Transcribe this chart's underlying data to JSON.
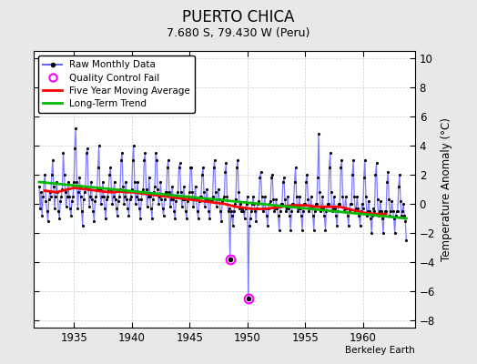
{
  "title": "PUERTO CHICA",
  "subtitle": "7.680 S, 79.430 W (Peru)",
  "ylabel": "Temperature Anomaly (°C)",
  "xlabel_note": "Berkeley Earth",
  "xlim": [
    1931.5,
    1964.5
  ],
  "ylim": [
    -8.5,
    10.5
  ],
  "yticks": [
    -8,
    -6,
    -4,
    -2,
    0,
    2,
    4,
    6,
    8,
    10
  ],
  "xticks": [
    1935,
    1940,
    1945,
    1950,
    1955,
    1960
  ],
  "background_color": "#e8e8e8",
  "plot_bg": "#ffffff",
  "raw_color": "#6666ff",
  "dot_color": "#000000",
  "ma_color": "#ff0000",
  "trend_color": "#00bb00",
  "qc_fail_color": "#ff00ff",
  "raw_data": [
    [
      1932.0,
      1.2
    ],
    [
      1932.083,
      -0.3
    ],
    [
      1932.167,
      0.8
    ],
    [
      1932.25,
      -0.8
    ],
    [
      1932.333,
      0.5
    ],
    [
      1932.417,
      1.5
    ],
    [
      1932.5,
      2.0
    ],
    [
      1932.583,
      0.2
    ],
    [
      1932.667,
      -0.5
    ],
    [
      1932.75,
      -1.2
    ],
    [
      1932.833,
      0.3
    ],
    [
      1932.917,
      0.8
    ],
    [
      1933.0,
      0.5
    ],
    [
      1933.083,
      2.0
    ],
    [
      1933.167,
      3.0
    ],
    [
      1933.25,
      1.2
    ],
    [
      1933.333,
      -0.3
    ],
    [
      1933.417,
      0.5
    ],
    [
      1933.5,
      1.5
    ],
    [
      1933.583,
      0.8
    ],
    [
      1933.667,
      -0.5
    ],
    [
      1933.75,
      -1.0
    ],
    [
      1933.833,
      0.2
    ],
    [
      1933.917,
      0.5
    ],
    [
      1934.0,
      1.0
    ],
    [
      1934.083,
      3.5
    ],
    [
      1934.167,
      2.0
    ],
    [
      1934.25,
      0.8
    ],
    [
      1934.333,
      -0.2
    ],
    [
      1934.417,
      0.5
    ],
    [
      1934.5,
      1.5
    ],
    [
      1934.583,
      0.5
    ],
    [
      1934.667,
      -0.3
    ],
    [
      1934.75,
      -0.8
    ],
    [
      1934.833,
      0.2
    ],
    [
      1934.917,
      0.5
    ],
    [
      1935.0,
      1.5
    ],
    [
      1935.083,
      3.8
    ],
    [
      1935.167,
      5.2
    ],
    [
      1935.25,
      1.5
    ],
    [
      1935.333,
      -0.3
    ],
    [
      1935.417,
      0.8
    ],
    [
      1935.5,
      1.8
    ],
    [
      1935.583,
      0.5
    ],
    [
      1935.667,
      -0.5
    ],
    [
      1935.75,
      -1.5
    ],
    [
      1935.833,
      0.3
    ],
    [
      1935.917,
      0.8
    ],
    [
      1936.0,
      1.2
    ],
    [
      1936.083,
      3.5
    ],
    [
      1936.167,
      3.8
    ],
    [
      1936.25,
      1.0
    ],
    [
      1936.333,
      -0.2
    ],
    [
      1936.417,
      0.5
    ],
    [
      1936.5,
      1.5
    ],
    [
      1936.583,
      0.3
    ],
    [
      1936.667,
      -0.5
    ],
    [
      1936.75,
      -1.2
    ],
    [
      1936.833,
      0.2
    ],
    [
      1936.917,
      0.5
    ],
    [
      1937.0,
      1.0
    ],
    [
      1937.083,
      2.5
    ],
    [
      1937.167,
      4.0
    ],
    [
      1937.25,
      1.0
    ],
    [
      1937.333,
      0.0
    ],
    [
      1937.417,
      0.5
    ],
    [
      1937.5,
      1.5
    ],
    [
      1937.583,
      0.5
    ],
    [
      1937.667,
      -0.3
    ],
    [
      1937.75,
      -1.0
    ],
    [
      1937.833,
      0.3
    ],
    [
      1937.917,
      0.5
    ],
    [
      1938.0,
      1.0
    ],
    [
      1938.083,
      2.0
    ],
    [
      1938.167,
      2.5
    ],
    [
      1938.25,
      1.0
    ],
    [
      1938.333,
      0.0
    ],
    [
      1938.417,
      0.5
    ],
    [
      1938.5,
      1.5
    ],
    [
      1938.583,
      0.3
    ],
    [
      1938.667,
      -0.3
    ],
    [
      1938.75,
      -0.8
    ],
    [
      1938.833,
      0.2
    ],
    [
      1938.917,
      0.5
    ],
    [
      1939.0,
      1.0
    ],
    [
      1939.083,
      3.0
    ],
    [
      1939.167,
      3.5
    ],
    [
      1939.25,
      1.2
    ],
    [
      1939.333,
      0.0
    ],
    [
      1939.417,
      0.5
    ],
    [
      1939.5,
      1.5
    ],
    [
      1939.583,
      0.3
    ],
    [
      1939.667,
      -0.3
    ],
    [
      1939.75,
      -0.8
    ],
    [
      1939.833,
      0.3
    ],
    [
      1939.917,
      0.5
    ],
    [
      1940.0,
      1.0
    ],
    [
      1940.083,
      3.0
    ],
    [
      1940.167,
      4.0
    ],
    [
      1940.25,
      1.5
    ],
    [
      1940.333,
      0.0
    ],
    [
      1940.417,
      0.5
    ],
    [
      1940.5,
      1.5
    ],
    [
      1940.583,
      0.3
    ],
    [
      1940.667,
      -0.3
    ],
    [
      1940.75,
      -1.0
    ],
    [
      1940.833,
      0.3
    ],
    [
      1940.917,
      0.8
    ],
    [
      1941.0,
      1.0
    ],
    [
      1941.083,
      3.0
    ],
    [
      1941.167,
      3.5
    ],
    [
      1941.25,
      1.0
    ],
    [
      1941.333,
      -0.2
    ],
    [
      1941.417,
      0.5
    ],
    [
      1941.5,
      1.8
    ],
    [
      1941.583,
      0.5
    ],
    [
      1941.667,
      -0.3
    ],
    [
      1941.75,
      -1.0
    ],
    [
      1941.833,
      0.3
    ],
    [
      1941.917,
      0.8
    ],
    [
      1942.0,
      1.2
    ],
    [
      1942.083,
      3.5
    ],
    [
      1942.167,
      3.0
    ],
    [
      1942.25,
      1.0
    ],
    [
      1942.333,
      0.0
    ],
    [
      1942.417,
      0.5
    ],
    [
      1942.5,
      1.5
    ],
    [
      1942.583,
      0.3
    ],
    [
      1942.667,
      -0.3
    ],
    [
      1942.75,
      -0.8
    ],
    [
      1942.833,
      0.3
    ],
    [
      1942.917,
      0.8
    ],
    [
      1943.0,
      0.8
    ],
    [
      1943.083,
      2.5
    ],
    [
      1943.167,
      3.0
    ],
    [
      1943.25,
      0.8
    ],
    [
      1943.333,
      -0.2
    ],
    [
      1943.417,
      0.3
    ],
    [
      1943.5,
      1.2
    ],
    [
      1943.583,
      0.3
    ],
    [
      1943.667,
      -0.5
    ],
    [
      1943.75,
      -1.0
    ],
    [
      1943.833,
      0.2
    ],
    [
      1943.917,
      0.5
    ],
    [
      1944.0,
      0.8
    ],
    [
      1944.083,
      2.5
    ],
    [
      1944.167,
      2.8
    ],
    [
      1944.25,
      0.8
    ],
    [
      1944.333,
      -0.2
    ],
    [
      1944.417,
      0.3
    ],
    [
      1944.5,
      1.2
    ],
    [
      1944.583,
      0.3
    ],
    [
      1944.667,
      -0.5
    ],
    [
      1944.75,
      -1.0
    ],
    [
      1944.833,
      0.2
    ],
    [
      1944.917,
      0.5
    ],
    [
      1945.0,
      0.8
    ],
    [
      1945.083,
      2.5
    ],
    [
      1945.167,
      2.5
    ],
    [
      1945.25,
      0.8
    ],
    [
      1945.333,
      -0.2
    ],
    [
      1945.417,
      0.3
    ],
    [
      1945.5,
      1.2
    ],
    [
      1945.583,
      0.3
    ],
    [
      1945.667,
      -0.5
    ],
    [
      1945.75,
      -1.0
    ],
    [
      1945.833,
      0.2
    ],
    [
      1945.917,
      0.5
    ],
    [
      1946.0,
      0.5
    ],
    [
      1946.083,
      2.0
    ],
    [
      1946.167,
      2.5
    ],
    [
      1946.25,
      0.8
    ],
    [
      1946.333,
      -0.2
    ],
    [
      1946.417,
      0.3
    ],
    [
      1946.5,
      1.0
    ],
    [
      1946.583,
      0.3
    ],
    [
      1946.667,
      -0.5
    ],
    [
      1946.75,
      -1.0
    ],
    [
      1946.833,
      0.2
    ],
    [
      1946.917,
      0.3
    ],
    [
      1947.0,
      0.5
    ],
    [
      1947.083,
      2.5
    ],
    [
      1947.167,
      3.0
    ],
    [
      1947.25,
      0.8
    ],
    [
      1947.333,
      -0.2
    ],
    [
      1947.417,
      0.3
    ],
    [
      1947.5,
      1.0
    ],
    [
      1947.583,
      0.3
    ],
    [
      1947.667,
      -0.5
    ],
    [
      1947.75,
      -1.2
    ],
    [
      1947.833,
      0.2
    ],
    [
      1947.917,
      0.3
    ],
    [
      1948.0,
      0.5
    ],
    [
      1948.083,
      2.2
    ],
    [
      1948.167,
      2.8
    ],
    [
      1948.25,
      0.5
    ],
    [
      1948.333,
      -0.5
    ],
    [
      1948.417,
      -0.3
    ],
    [
      1948.5,
      -3.8
    ],
    [
      1948.583,
      -0.5
    ],
    [
      1948.667,
      -0.8
    ],
    [
      1948.75,
      -1.5
    ],
    [
      1948.833,
      -0.5
    ],
    [
      1948.917,
      0.0
    ],
    [
      1949.0,
      0.3
    ],
    [
      1949.083,
      2.5
    ],
    [
      1949.167,
      3.0
    ],
    [
      1949.25,
      0.8
    ],
    [
      1949.333,
      -0.3
    ],
    [
      1949.417,
      0.0
    ],
    [
      1949.5,
      -0.5
    ],
    [
      1949.583,
      -0.3
    ],
    [
      1949.667,
      -0.5
    ],
    [
      1949.75,
      -1.0
    ],
    [
      1949.833,
      -0.3
    ],
    [
      1949.917,
      0.0
    ],
    [
      1950.0,
      0.5
    ],
    [
      1950.083,
      -6.5
    ],
    [
      1950.167,
      -1.5
    ],
    [
      1950.25,
      -1.0
    ],
    [
      1950.333,
      -0.5
    ],
    [
      1950.417,
      0.0
    ],
    [
      1950.5,
      0.5
    ],
    [
      1950.583,
      0.0
    ],
    [
      1950.667,
      -0.5
    ],
    [
      1950.75,
      -1.2
    ],
    [
      1950.833,
      -0.3
    ],
    [
      1950.917,
      0.0
    ],
    [
      1951.0,
      0.2
    ],
    [
      1951.083,
      1.8
    ],
    [
      1951.167,
      2.2
    ],
    [
      1951.25,
      0.5
    ],
    [
      1951.333,
      -0.5
    ],
    [
      1951.417,
      -0.3
    ],
    [
      1951.5,
      0.5
    ],
    [
      1951.583,
      -0.3
    ],
    [
      1951.667,
      -0.8
    ],
    [
      1951.75,
      -1.5
    ],
    [
      1951.833,
      -0.3
    ],
    [
      1951.917,
      0.0
    ],
    [
      1952.0,
      0.2
    ],
    [
      1952.083,
      1.8
    ],
    [
      1952.167,
      2.0
    ],
    [
      1952.25,
      0.3
    ],
    [
      1952.333,
      -0.5
    ],
    [
      1952.417,
      -0.3
    ],
    [
      1952.5,
      0.3
    ],
    [
      1952.583,
      -0.3
    ],
    [
      1952.667,
      -0.8
    ],
    [
      1952.75,
      -1.8
    ],
    [
      1952.833,
      -0.5
    ],
    [
      1952.917,
      0.0
    ],
    [
      1953.0,
      0.0
    ],
    [
      1953.083,
      1.5
    ],
    [
      1953.167,
      1.8
    ],
    [
      1953.25,
      0.3
    ],
    [
      1953.333,
      -0.5
    ],
    [
      1953.417,
      -0.3
    ],
    [
      1953.5,
      0.5
    ],
    [
      1953.583,
      -0.3
    ],
    [
      1953.667,
      -0.8
    ],
    [
      1953.75,
      -1.8
    ],
    [
      1953.833,
      -0.5
    ],
    [
      1953.917,
      0.0
    ],
    [
      1954.0,
      0.0
    ],
    [
      1954.083,
      1.5
    ],
    [
      1954.167,
      2.5
    ],
    [
      1954.25,
      0.5
    ],
    [
      1954.333,
      -0.5
    ],
    [
      1954.417,
      -0.3
    ],
    [
      1954.5,
      0.5
    ],
    [
      1954.583,
      -0.3
    ],
    [
      1954.667,
      -0.8
    ],
    [
      1954.75,
      -1.8
    ],
    [
      1954.833,
      -0.5
    ],
    [
      1954.917,
      0.0
    ],
    [
      1955.0,
      0.0
    ],
    [
      1955.083,
      1.5
    ],
    [
      1955.167,
      2.0
    ],
    [
      1955.25,
      0.3
    ],
    [
      1955.333,
      -0.5
    ],
    [
      1955.417,
      -0.3
    ],
    [
      1955.5,
      0.5
    ],
    [
      1955.583,
      -0.3
    ],
    [
      1955.667,
      -0.8
    ],
    [
      1955.75,
      -1.8
    ],
    [
      1955.833,
      -0.5
    ],
    [
      1955.917,
      0.0
    ],
    [
      1956.0,
      0.0
    ],
    [
      1956.083,
      1.8
    ],
    [
      1956.167,
      4.8
    ],
    [
      1956.25,
      0.8
    ],
    [
      1956.333,
      -0.5
    ],
    [
      1956.417,
      -0.3
    ],
    [
      1956.5,
      0.5
    ],
    [
      1956.583,
      -0.3
    ],
    [
      1956.667,
      -0.8
    ],
    [
      1956.75,
      -1.8
    ],
    [
      1956.833,
      -0.5
    ],
    [
      1956.917,
      0.0
    ],
    [
      1957.0,
      0.0
    ],
    [
      1957.083,
      2.5
    ],
    [
      1957.167,
      3.5
    ],
    [
      1957.25,
      0.8
    ],
    [
      1957.333,
      -0.5
    ],
    [
      1957.417,
      -0.3
    ],
    [
      1957.5,
      0.5
    ],
    [
      1957.583,
      -0.3
    ],
    [
      1957.667,
      -0.8
    ],
    [
      1957.75,
      -1.5
    ],
    [
      1957.833,
      -0.5
    ],
    [
      1957.917,
      0.0
    ],
    [
      1958.0,
      0.0
    ],
    [
      1958.083,
      2.5
    ],
    [
      1958.167,
      3.0
    ],
    [
      1958.25,
      0.5
    ],
    [
      1958.333,
      -0.5
    ],
    [
      1958.417,
      -0.3
    ],
    [
      1958.5,
      0.5
    ],
    [
      1958.583,
      -0.3
    ],
    [
      1958.667,
      -0.8
    ],
    [
      1958.75,
      -1.5
    ],
    [
      1958.833,
      -0.5
    ],
    [
      1958.917,
      0.0
    ],
    [
      1959.0,
      0.0
    ],
    [
      1959.083,
      2.0
    ],
    [
      1959.167,
      3.0
    ],
    [
      1959.25,
      0.5
    ],
    [
      1959.333,
      -0.5
    ],
    [
      1959.417,
      -0.3
    ],
    [
      1959.5,
      0.5
    ],
    [
      1959.583,
      -0.3
    ],
    [
      1959.667,
      -0.8
    ],
    [
      1959.75,
      -1.5
    ],
    [
      1959.833,
      -0.5
    ],
    [
      1959.917,
      0.0
    ],
    [
      1960.0,
      -0.3
    ],
    [
      1960.083,
      1.8
    ],
    [
      1960.167,
      3.0
    ],
    [
      1960.25,
      0.5
    ],
    [
      1960.333,
      -0.8
    ],
    [
      1960.417,
      -0.5
    ],
    [
      1960.5,
      0.2
    ],
    [
      1960.583,
      -0.5
    ],
    [
      1960.667,
      -1.0
    ],
    [
      1960.75,
      -2.0
    ],
    [
      1960.833,
      -0.8
    ],
    [
      1960.917,
      -0.3
    ],
    [
      1961.0,
      -0.5
    ],
    [
      1961.083,
      2.0
    ],
    [
      1961.167,
      2.8
    ],
    [
      1961.25,
      0.3
    ],
    [
      1961.333,
      -0.8
    ],
    [
      1961.417,
      -0.5
    ],
    [
      1961.5,
      0.2
    ],
    [
      1961.583,
      -0.5
    ],
    [
      1961.667,
      -1.0
    ],
    [
      1961.75,
      -2.0
    ],
    [
      1961.833,
      -0.8
    ],
    [
      1961.917,
      -0.5
    ],
    [
      1962.0,
      -0.5
    ],
    [
      1962.083,
      1.5
    ],
    [
      1962.167,
      2.2
    ],
    [
      1962.25,
      0.3
    ],
    [
      1962.333,
      -0.8
    ],
    [
      1962.417,
      -0.5
    ],
    [
      1962.5,
      0.2
    ],
    [
      1962.583,
      -0.5
    ],
    [
      1962.667,
      -1.0
    ],
    [
      1962.75,
      -2.0
    ],
    [
      1962.833,
      -0.8
    ],
    [
      1962.917,
      -0.5
    ],
    [
      1963.0,
      -0.5
    ],
    [
      1963.083,
      1.2
    ],
    [
      1963.167,
      2.0
    ],
    [
      1963.25,
      0.2
    ],
    [
      1963.333,
      -0.8
    ],
    [
      1963.417,
      -0.5
    ],
    [
      1963.5,
      0.0
    ],
    [
      1963.583,
      -0.8
    ],
    [
      1963.667,
      -1.2
    ],
    [
      1963.75,
      -2.5
    ]
  ],
  "qc_fail_points": [
    [
      1948.5,
      -3.8
    ],
    [
      1950.083,
      -6.5
    ]
  ],
  "moving_avg": [
    [
      1932.5,
      0.9
    ],
    [
      1933.0,
      0.85
    ],
    [
      1933.5,
      0.8
    ],
    [
      1934.0,
      0.9
    ],
    [
      1934.5,
      1.0
    ],
    [
      1935.0,
      1.1
    ],
    [
      1935.5,
      1.05
    ],
    [
      1936.0,
      1.0
    ],
    [
      1936.5,
      0.95
    ],
    [
      1937.0,
      0.9
    ],
    [
      1937.5,
      0.85
    ],
    [
      1938.0,
      0.8
    ],
    [
      1938.5,
      0.8
    ],
    [
      1939.0,
      0.85
    ],
    [
      1939.5,
      0.8
    ],
    [
      1940.0,
      0.8
    ],
    [
      1940.5,
      0.75
    ],
    [
      1941.0,
      0.7
    ],
    [
      1941.5,
      0.65
    ],
    [
      1942.0,
      0.6
    ],
    [
      1942.5,
      0.55
    ],
    [
      1943.0,
      0.5
    ],
    [
      1943.5,
      0.45
    ],
    [
      1944.0,
      0.4
    ],
    [
      1944.5,
      0.35
    ],
    [
      1945.0,
      0.3
    ],
    [
      1945.5,
      0.25
    ],
    [
      1946.0,
      0.2
    ],
    [
      1946.5,
      0.15
    ],
    [
      1947.0,
      0.1
    ],
    [
      1947.5,
      0.05
    ],
    [
      1948.0,
      0.0
    ],
    [
      1948.5,
      -0.1
    ],
    [
      1949.0,
      -0.2
    ],
    [
      1949.5,
      -0.25
    ],
    [
      1950.0,
      -0.3
    ],
    [
      1950.5,
      -0.35
    ],
    [
      1951.0,
      -0.35
    ],
    [
      1951.5,
      -0.35
    ],
    [
      1952.0,
      -0.3
    ],
    [
      1952.5,
      -0.25
    ],
    [
      1953.0,
      -0.2
    ],
    [
      1953.5,
      -0.15
    ],
    [
      1954.0,
      -0.1
    ],
    [
      1954.5,
      -0.1
    ],
    [
      1955.0,
      -0.1
    ],
    [
      1955.5,
      -0.15
    ],
    [
      1956.0,
      -0.2
    ],
    [
      1956.5,
      -0.2
    ],
    [
      1957.0,
      -0.2
    ],
    [
      1957.5,
      -0.2
    ],
    [
      1958.0,
      -0.2
    ],
    [
      1958.5,
      -0.3
    ],
    [
      1959.0,
      -0.4
    ],
    [
      1959.5,
      -0.5
    ],
    [
      1960.0,
      -0.6
    ],
    [
      1960.5,
      -0.65
    ],
    [
      1961.0,
      -0.7
    ],
    [
      1961.5,
      -0.7
    ],
    [
      1962.0,
      -0.7
    ]
  ],
  "trend_line": [
    [
      1932.0,
      1.5
    ],
    [
      1963.75,
      -1.0
    ]
  ]
}
